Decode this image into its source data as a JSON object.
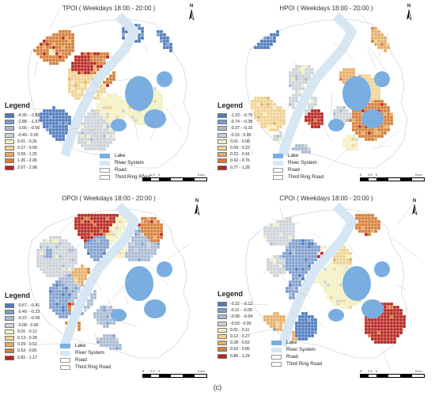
{
  "caption": "(c)",
  "legend_heading": "Legend",
  "legend_items_common": [
    {
      "label": "Lake",
      "color": "#7aaee0"
    },
    {
      "label": "River System",
      "color": "#d6e6f3"
    },
    {
      "label": "Road",
      "color": "#ffffff"
    },
    {
      "label": "Third Ring Road",
      "color": "#ffffff"
    }
  ],
  "scale": {
    "ticks": [
      "5",
      "2.5",
      "0",
      "5 km"
    ]
  },
  "north_label": "N",
  "panels": [
    {
      "id": "tpoi",
      "title": "TPOI ( Weekdays 18:00 - 20:00 )",
      "classes": [
        {
          "label": "-4.35 - -2.89",
          "color": "#4d7bbf"
        },
        {
          "label": "-2.88 - -1.67",
          "color": "#7d9dcc"
        },
        {
          "label": "-1.66 - -0.50",
          "color": "#a7b9d3"
        },
        {
          "label": "-0.49 - 0.00",
          "color": "#ccd3d8"
        },
        {
          "label": "0.01 - 0.26",
          "color": "#f3f0bf"
        },
        {
          "label": "0.27 - 0.58",
          "color": "#f0d291"
        },
        {
          "label": "0.59 - 1.25",
          "color": "#e6ad64"
        },
        {
          "label": "1.26 - 2.06",
          "color": "#d47e36"
        },
        {
          "label": "2.07 - 2.98",
          "color": "#b8231f"
        }
      ]
    },
    {
      "id": "hpoi",
      "title": "HPOI ( Weekdays 18:00 - 20:00 )",
      "classes": [
        {
          "label": "-1.33 - -0.75",
          "color": "#4d7bbf"
        },
        {
          "label": "-0.74 - -0.38",
          "color": "#7d9dcc"
        },
        {
          "label": "-0.37 - -0.16",
          "color": "#a7b9d3"
        },
        {
          "label": "-0.15 - 0.00",
          "color": "#ccd3d8"
        },
        {
          "label": "0.01 - 0.08",
          "color": "#f3f0bf"
        },
        {
          "label": "0.09 - 0.22",
          "color": "#f0d291"
        },
        {
          "label": "0.23 - 0.41",
          "color": "#e6ad64"
        },
        {
          "label": "0.42 - 0.76",
          "color": "#d47e36"
        },
        {
          "label": "0.77 - 1.28",
          "color": "#b8231f"
        }
      ]
    },
    {
      "id": "opoi",
      "title": "OPOI ( Weekdays 18:00 - 20:00 )",
      "classes": [
        {
          "label": "-0.67 - -0.41",
          "color": "#4d7bbf"
        },
        {
          "label": "-0.40 - -0.23",
          "color": "#7d9dcc"
        },
        {
          "label": "-0.22 - -0.09",
          "color": "#a7b9d3"
        },
        {
          "label": "-0.08 - 0.00",
          "color": "#ccd3d8"
        },
        {
          "label": "0.01 - 0.12",
          "color": "#f3f0bf"
        },
        {
          "label": "0.13 - 0.28",
          "color": "#f0d291"
        },
        {
          "label": "0.29 - 0.52",
          "color": "#e6ad64"
        },
        {
          "label": "0.53 - 0.81",
          "color": "#d47e36"
        },
        {
          "label": "0.82 - 1.17",
          "color": "#b8231f"
        }
      ]
    },
    {
      "id": "cpoi",
      "title": "CPOI ( Weekdays 18:00 - 20:00 )",
      "classes": [
        {
          "label": "-0.32 - -0.12",
          "color": "#4d7bbf"
        },
        {
          "label": "-0.11 - -0.09",
          "color": "#7d9dcc"
        },
        {
          "label": "-0.08 - -0.04",
          "color": "#a7b9d3"
        },
        {
          "label": "-0.03 - 0.00",
          "color": "#ccd3d8"
        },
        {
          "label": "0.01 - 0.11",
          "color": "#f3f0bf"
        },
        {
          "label": "0.12 - 0.27",
          "color": "#f0d291"
        },
        {
          "label": "0.28 - 0.52",
          "color": "#e6ad64"
        },
        {
          "label": "0.53 - 0.85",
          "color": "#d47e36"
        },
        {
          "label": "0.86 - 1.24",
          "color": "#b8231f"
        }
      ]
    }
  ]
}
